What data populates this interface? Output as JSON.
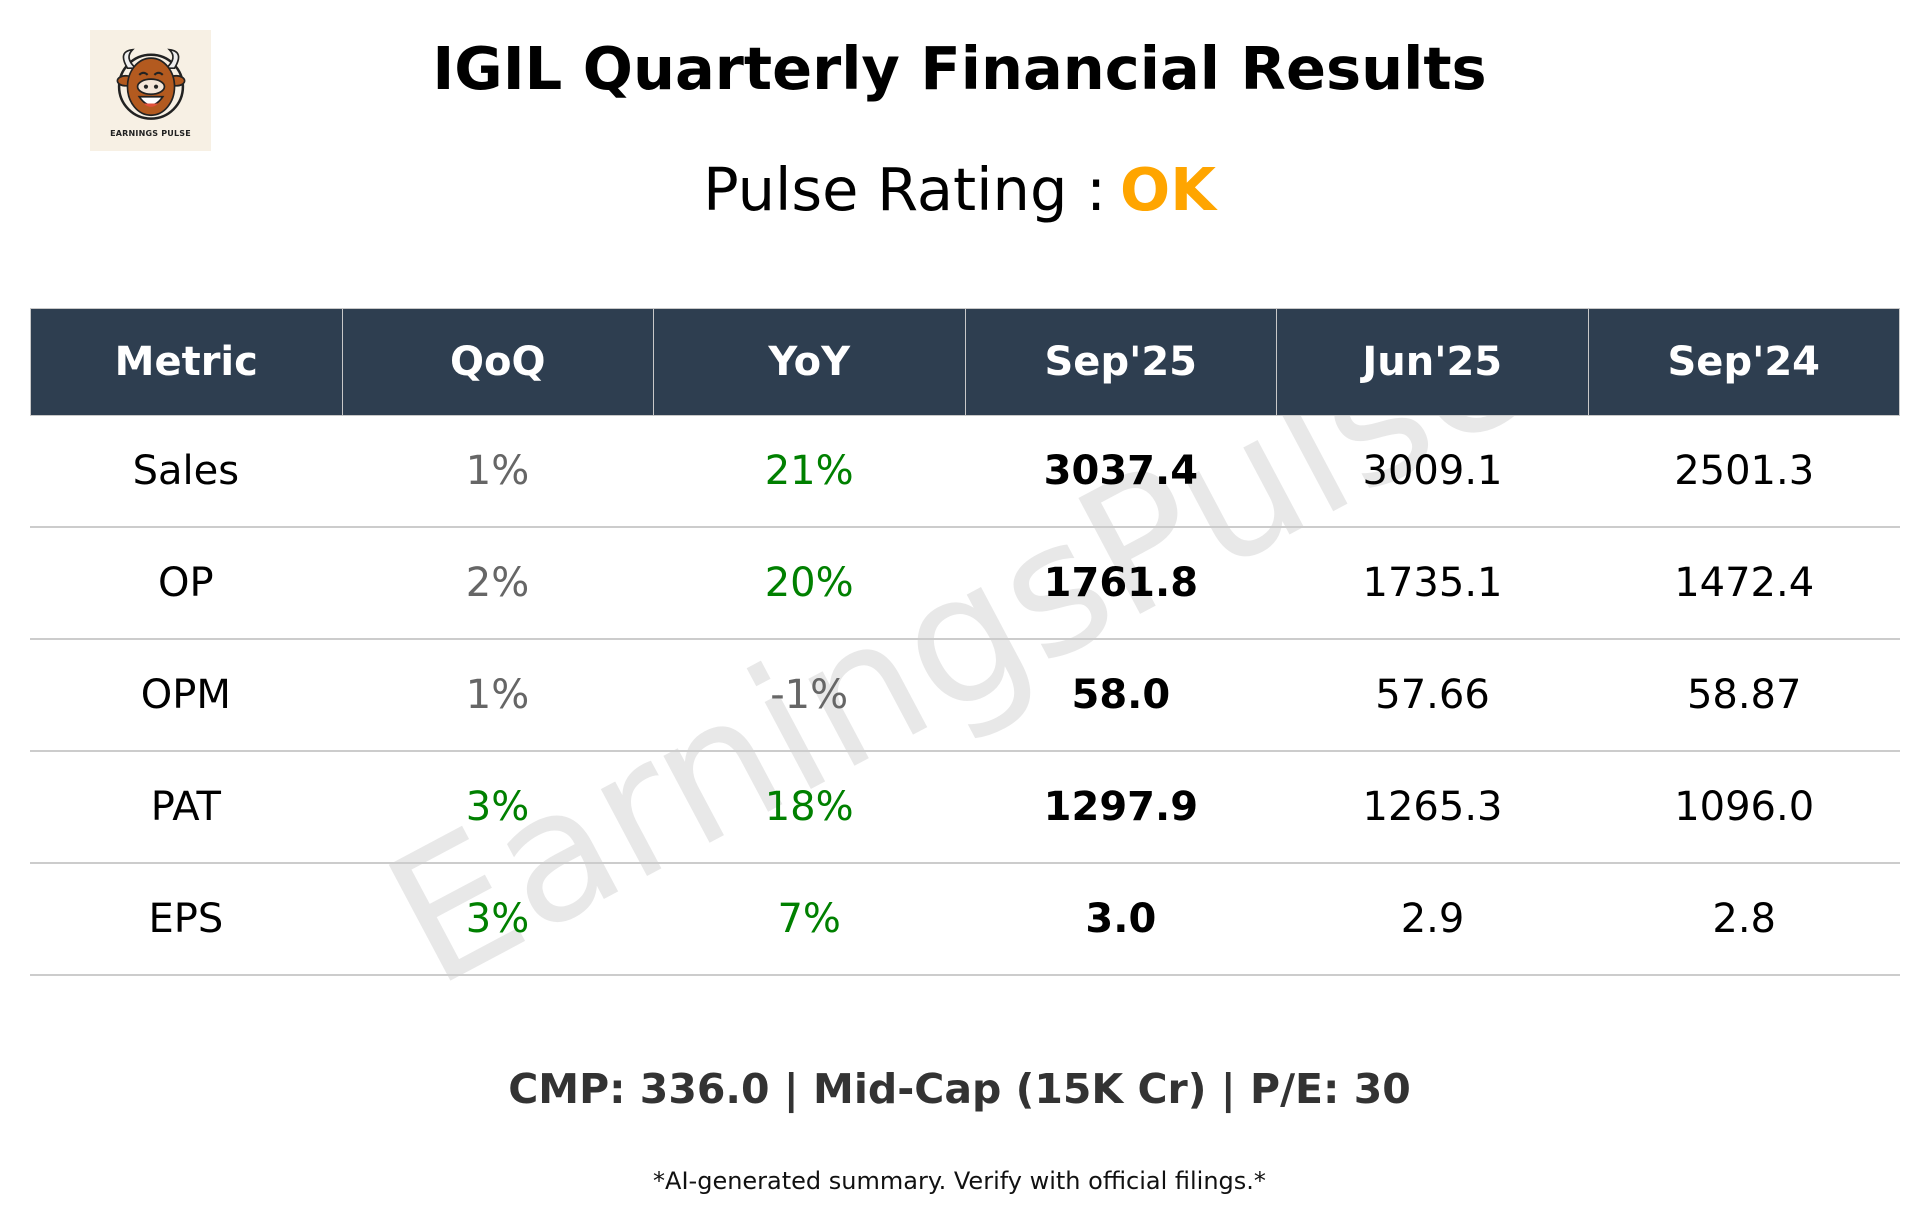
{
  "logo": {
    "brand_text": "EARNINGS PULSE",
    "icon": "bull-mascot-icon"
  },
  "header": {
    "title": "IGIL Quarterly Financial Results",
    "rating_label": "Pulse Rating :",
    "rating_value": "OK",
    "rating_color": "#ffa500"
  },
  "watermark": "EarningsPulse",
  "colors": {
    "header_bg": "#2e3e50",
    "positive": "#008000",
    "neutral": "#666666",
    "value": "#000000"
  },
  "table": {
    "columns": [
      "Metric",
      "QoQ",
      "YoY",
      "Sep'25",
      "Jun'25",
      "Sep'24"
    ],
    "rows": [
      {
        "metric": "Sales",
        "qoq": "1%",
        "qoq_tone": "neutral",
        "yoy": "21%",
        "yoy_tone": "positive",
        "sep25": "3037.4",
        "jun25": "3009.1",
        "sep24": "2501.3"
      },
      {
        "metric": "OP",
        "qoq": "2%",
        "qoq_tone": "neutral",
        "yoy": "20%",
        "yoy_tone": "positive",
        "sep25": "1761.8",
        "jun25": "1735.1",
        "sep24": "1472.4"
      },
      {
        "metric": "OPM",
        "qoq": "1%",
        "qoq_tone": "neutral",
        "yoy": "-1%",
        "yoy_tone": "neutral",
        "sep25": "58.0",
        "jun25": "57.66",
        "sep24": "58.87"
      },
      {
        "metric": "PAT",
        "qoq": "3%",
        "qoq_tone": "positive",
        "yoy": "18%",
        "yoy_tone": "positive",
        "sep25": "1297.9",
        "jun25": "1265.3",
        "sep24": "1096.0"
      },
      {
        "metric": "EPS",
        "qoq": "3%",
        "qoq_tone": "positive",
        "yoy": "7%",
        "yoy_tone": "positive",
        "sep25": "3.0",
        "jun25": "2.9",
        "sep24": "2.8"
      }
    ]
  },
  "footer": {
    "summary": "CMP: 336.0 | Mid-Cap (15K Cr) | P/E: 30",
    "disclaimer": "*AI-generated summary. Verify with official filings.*"
  }
}
